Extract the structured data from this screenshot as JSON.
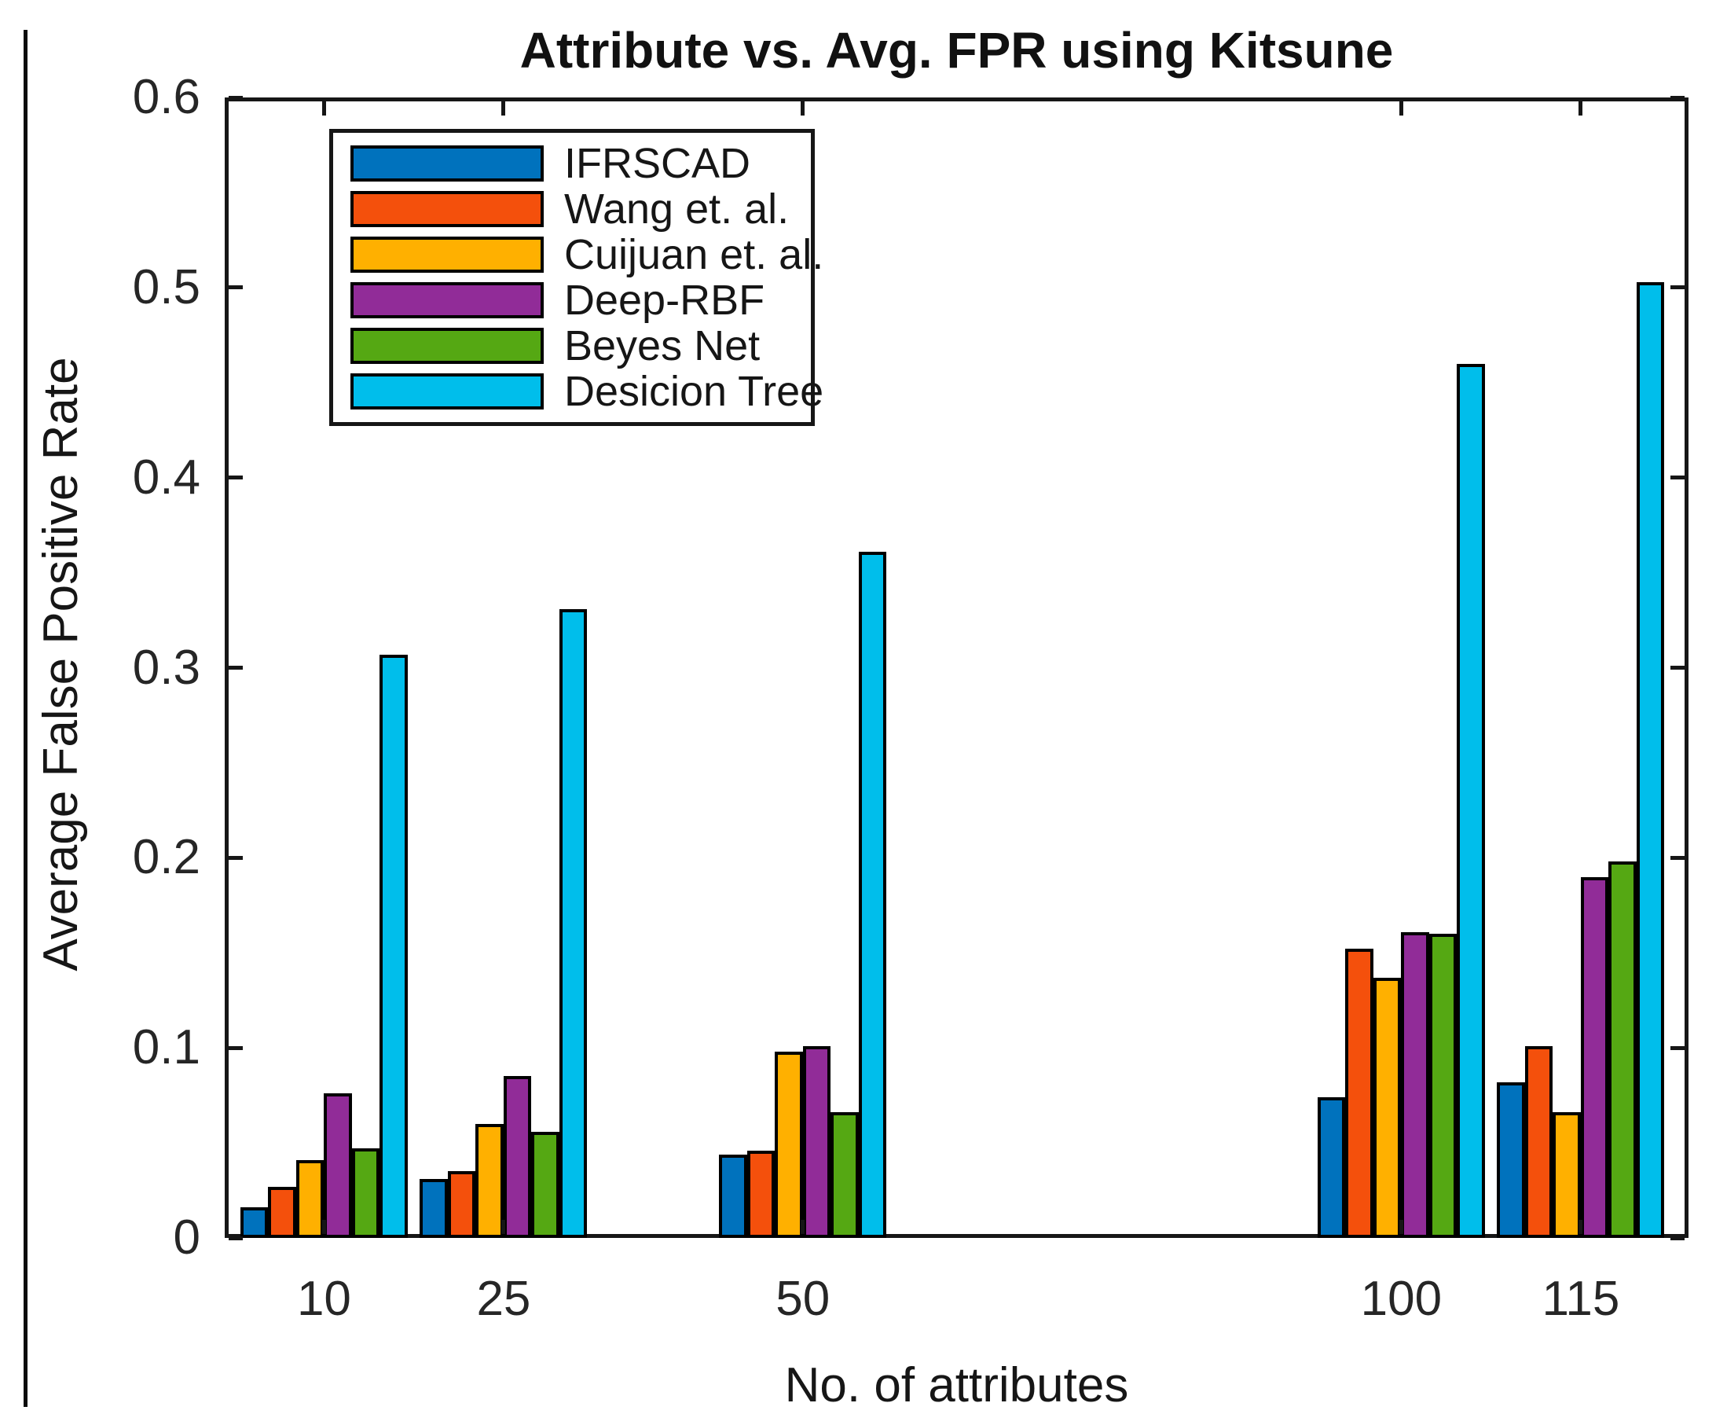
{
  "page": {
    "background_color": "#ffffff",
    "frame_color": "#161616",
    "text_color": "#262626"
  },
  "chart_data": {
    "type": "bar",
    "title": "Attribute vs. Avg. FPR using Kitsune",
    "xlabel": "No. of attributes",
    "ylabel": "Average False Positive Rate",
    "x": [
      10,
      25,
      50,
      100,
      115
    ],
    "x_tick_labels": [
      "10",
      "25",
      "50",
      "100",
      "115"
    ],
    "xlim": [
      1.7,
      124.0
    ],
    "ylim": [
      0,
      0.6
    ],
    "y_ticks": [
      0,
      0.1,
      0.2,
      0.3,
      0.4,
      0.5,
      0.6
    ],
    "y_tick_labels": [
      "0",
      "0.1",
      "0.2",
      "0.3",
      "0.4",
      "0.5",
      "0.6"
    ],
    "grid": false,
    "legend_position": "upper-left-inside",
    "bar_edge_color": "#000000",
    "series": [
      {
        "name": "IFRSCAD",
        "color": "#0072BD",
        "values": [
          0.016,
          0.031,
          0.044,
          0.074,
          0.082
        ]
      },
      {
        "name": "Wang et. al.",
        "color": "#F4500C",
        "values": [
          0.027,
          0.035,
          0.046,
          0.152,
          0.101
        ]
      },
      {
        "name": "Cuijuan et. al.",
        "color": "#FFB000",
        "values": [
          0.041,
          0.06,
          0.098,
          0.137,
          0.066
        ]
      },
      {
        "name": "Deep-RBF",
        "color": "#912C98",
        "values": [
          0.076,
          0.085,
          0.101,
          0.161,
          0.19
        ]
      },
      {
        "name": "Beyes Net",
        "color": "#55A813",
        "values": [
          0.047,
          0.056,
          0.066,
          0.16,
          0.198
        ]
      },
      {
        "name": "Desicion Tree",
        "color": "#00BEEB",
        "values": [
          0.307,
          0.331,
          0.361,
          0.46,
          0.503
        ]
      }
    ]
  }
}
